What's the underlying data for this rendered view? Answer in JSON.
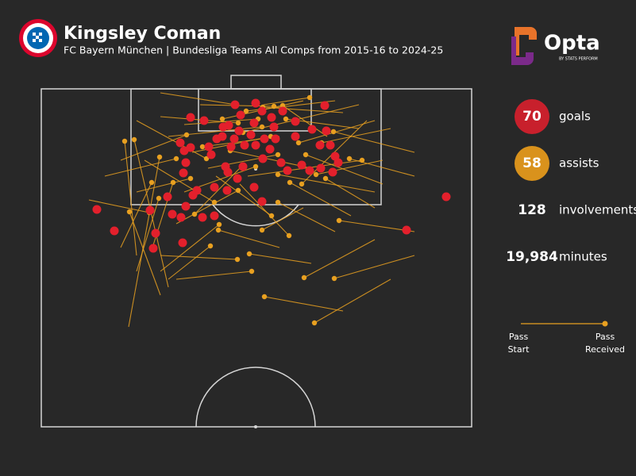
{
  "header": {
    "title": "Kingsley Coman",
    "subtitle": "FC Bayern München | Bundesliga Teams All Comps from 2015-16 to 2024-25",
    "brand": "Opta",
    "brand_sub": "BY STATS PERFORM"
  },
  "stats": [
    {
      "value": "70",
      "label": "goals"
    },
    {
      "value": "58",
      "label": "assists"
    },
    {
      "value": "128",
      "label": "involvements"
    },
    {
      "value": "19,984",
      "label": "minutes"
    }
  ],
  "legend": {
    "start": [
      "Pass",
      "Start"
    ],
    "end": [
      "Pass",
      "Received"
    ]
  },
  "pitch": {
    "xlim": [
      0,
      542
    ],
    "ylim": [
      0,
      426
    ]
  },
  "goals": [
    [
      270,
      18
    ],
    [
      244,
      20
    ],
    [
      357,
      21
    ],
    [
      188,
      36
    ],
    [
      205,
      40
    ],
    [
      278,
      28
    ],
    [
      251,
      33
    ],
    [
      236,
      46
    ],
    [
      268,
      43
    ],
    [
      304,
      28
    ],
    [
      320,
      41
    ],
    [
      293,
      48
    ],
    [
      341,
      51
    ],
    [
      359,
      53
    ],
    [
      249,
      53
    ],
    [
      228,
      60
    ],
    [
      243,
      63
    ],
    [
      264,
      58
    ],
    [
      281,
      63
    ],
    [
      295,
      63
    ],
    [
      221,
      63
    ],
    [
      211,
      73
    ],
    [
      175,
      68
    ],
    [
      188,
      74
    ],
    [
      180,
      78
    ],
    [
      239,
      73
    ],
    [
      256,
      71
    ],
    [
      270,
      71
    ],
    [
      288,
      76
    ],
    [
      351,
      71
    ],
    [
      364,
      71
    ],
    [
      320,
      60
    ],
    [
      214,
      83
    ],
    [
      232,
      98
    ],
    [
      254,
      98
    ],
    [
      279,
      88
    ],
    [
      302,
      93
    ],
    [
      328,
      96
    ],
    [
      338,
      103
    ],
    [
      352,
      100
    ],
    [
      370,
      85
    ],
    [
      374,
      93
    ],
    [
      367,
      105
    ],
    [
      310,
      103
    ],
    [
      182,
      93
    ],
    [
      179,
      106
    ],
    [
      235,
      105
    ],
    [
      247,
      113
    ],
    [
      218,
      124
    ],
    [
      196,
      128
    ],
    [
      191,
      134
    ],
    [
      268,
      124
    ],
    [
      278,
      142
    ],
    [
      234,
      128
    ],
    [
      159,
      136
    ],
    [
      137,
      153
    ],
    [
      182,
      148
    ],
    [
      176,
      162
    ],
    [
      165,
      158
    ],
    [
      203,
      162
    ],
    [
      70,
      152
    ],
    [
      92,
      179
    ],
    [
      144,
      182
    ],
    [
      141,
      201
    ],
    [
      178,
      194
    ],
    [
      218,
      160
    ],
    [
      510,
      136
    ],
    [
      460,
      178
    ],
    [
      229,
      48
    ],
    [
      290,
      36
    ]
  ],
  "assists": [
    [
      120,
      210,
      105,
      66
    ],
    [
      160,
      250,
      117,
      64
    ],
    [
      110,
      300,
      149,
      86
    ],
    [
      100,
      200,
      139,
      118
    ],
    [
      60,
      140,
      136,
      156
    ],
    [
      150,
      260,
      111,
      155
    ],
    [
      150,
      5,
      245,
      20
    ],
    [
      380,
      30,
      279,
      23
    ],
    [
      200,
      20,
      293,
      22
    ],
    [
      360,
      60,
      304,
      21
    ],
    [
      280,
      20,
      338,
      11
    ],
    [
      400,
      20,
      254,
      55
    ],
    [
      190,
      80,
      289,
      60
    ],
    [
      420,
      40,
      324,
      68
    ],
    [
      470,
      80,
      368,
      54
    ],
    [
      260,
      110,
      404,
      90
    ],
    [
      410,
      40,
      328,
      120
    ],
    [
      220,
      110,
      290,
      160
    ],
    [
      250,
      120,
      312,
      185
    ],
    [
      470,
      180,
      375,
      166
    ],
    [
      420,
      190,
      331,
      238
    ],
    [
      470,
      210,
      369,
      239
    ],
    [
      380,
      280,
      281,
      262
    ],
    [
      440,
      240,
      344,
      295
    ],
    [
      170,
      240,
      265,
      230
    ],
    [
      150,
      210,
      247,
      215
    ],
    [
      340,
      220,
      262,
      208
    ],
    [
      150,
      230,
      224,
      171
    ],
    [
      250,
      100,
      193,
      158
    ],
    [
      130,
      90,
      218,
      143
    ],
    [
      180,
      130,
      270,
      98
    ],
    [
      420,
      130,
      298,
      108
    ],
    [
      160,
      60,
      278,
      48
    ],
    [
      430,
      90,
      346,
      108
    ],
    [
      140,
      200,
      166,
      118
    ],
    [
      120,
      40,
      208,
      88
    ],
    [
      340,
      100,
      238,
      78
    ],
    [
      150,
      35,
      248,
      43
    ],
    [
      370,
      15,
      258,
      28
    ],
    [
      180,
      45,
      273,
      38
    ],
    [
      400,
      50,
      308,
      38
    ],
    [
      430,
      120,
      333,
      83
    ],
    [
      420,
      150,
      358,
      113
    ],
    [
      100,
      90,
      183,
      58
    ],
    [
      300,
      60,
      203,
      73
    ],
    [
      330,
      15,
      228,
      38
    ],
    [
      210,
      100,
      298,
      83
    ],
    [
      390,
      160,
      313,
      118
    ],
    [
      120,
      130,
      188,
      113
    ],
    [
      120,
      230,
      148,
      138
    ],
    [
      300,
      200,
      223,
      178
    ],
    [
      330,
      150,
      278,
      178
    ],
    [
      160,
      240,
      213,
      198
    ],
    [
      440,
      50,
      353,
      68
    ],
    [
      170,
      170,
      248,
      128
    ],
    [
      470,
      110,
      388,
      88
    ],
    [
      80,
      110,
      170,
      88
    ],
    [
      370,
      180,
      298,
      143
    ]
  ]
}
